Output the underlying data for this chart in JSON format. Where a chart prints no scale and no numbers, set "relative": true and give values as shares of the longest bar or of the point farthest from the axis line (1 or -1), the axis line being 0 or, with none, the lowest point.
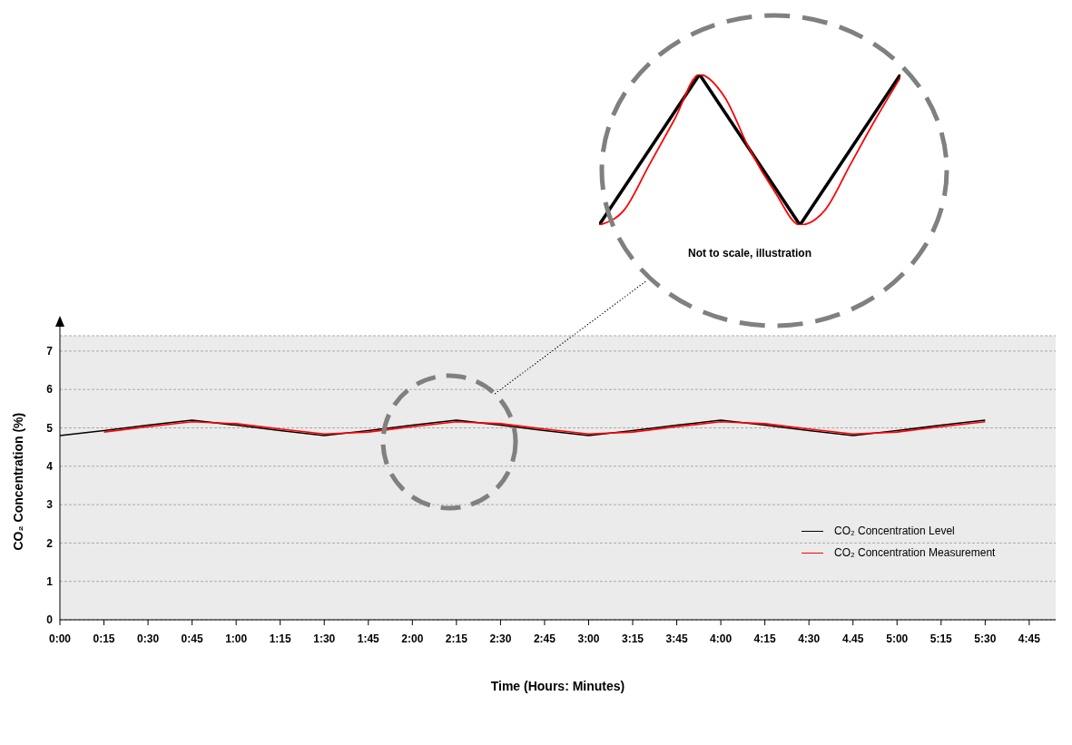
{
  "chart_data": [
    {
      "type": "line",
      "xlabel": "Time (Hours: Minutes)",
      "ylabel": "CO₂ Concentration (%)",
      "categories": [
        "0:00",
        "0:15",
        "0:30",
        "0:45",
        "1:00",
        "1:15",
        "1:30",
        "1:45",
        "2:00",
        "2:15",
        "2:30",
        "2:45",
        "3:00",
        "3:15",
        "3:45",
        "4:00",
        "4:15",
        "4:30",
        "4.45",
        "5:00",
        "5:15",
        "5:30",
        "4:45"
      ],
      "ylim": [
        0,
        7.4
      ],
      "yticks": [
        0,
        1,
        2,
        3,
        4,
        5,
        6,
        7
      ],
      "grid": "y",
      "legend": "bottom right",
      "series": [
        {
          "name": "CO₂ Concentration Level",
          "color": "#000000",
          "values": [
            4.8,
            4.93,
            5.07,
            5.2,
            5.07,
            4.93,
            4.8,
            4.93,
            5.07,
            5.2,
            5.07,
            4.93,
            4.8,
            4.93,
            5.07,
            5.2,
            5.07,
            4.93,
            4.8,
            4.93,
            5.07,
            5.2,
            null
          ]
        },
        {
          "name": "CO₂ Concentration Measurement",
          "color": "#ff0000",
          "values": [
            null,
            4.89,
            5.03,
            5.16,
            5.11,
            4.97,
            4.84,
            4.89,
            5.03,
            5.16,
            5.11,
            4.97,
            4.84,
            4.89,
            5.03,
            5.16,
            5.11,
            4.97,
            4.84,
            4.89,
            5.03,
            5.16,
            null
          ]
        }
      ]
    },
    {
      "type": "line",
      "relative": true,
      "categories": [
        null,
        null,
        null,
        null,
        null,
        null,
        null,
        null,
        null,
        null,
        null,
        null,
        null
      ],
      "series": [
        {
          "color": "#000000",
          "values": [
            0,
            0.25,
            0.5,
            0.75,
            1,
            0.75,
            0.5,
            0.25,
            0,
            0.25,
            0.5,
            0.75,
            1
          ]
        },
        {
          "color": "#ff0000",
          "values": [
            0,
            0.1,
            0.4,
            0.7,
            1,
            0.85,
            0.5,
            0.22,
            0,
            0.1,
            0.4,
            0.7,
            0.98
          ]
        }
      ],
      "annotations": [
        "Not to scale, illustration"
      ]
    }
  ]
}
